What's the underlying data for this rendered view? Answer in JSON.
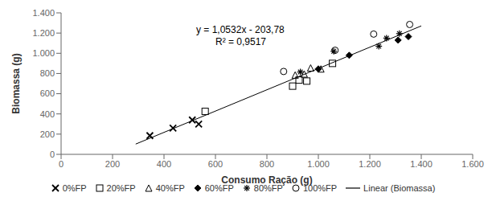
{
  "chart_data": {
    "type": "scatter",
    "x_label": "Consumo Ração (g)",
    "y_label": "Biomassa (g)",
    "annotations": [
      "y = 1,0532x - 203,78",
      "R² = 0,9517"
    ],
    "color": "#000000",
    "grid": false,
    "legend": "bottom",
    "xlim": [
      0,
      1600
    ],
    "ylim": [
      0,
      1400
    ],
    "xticks": [
      0,
      200,
      400,
      600,
      800,
      {
        "value": 1000,
        "label": "1.000"
      },
      {
        "value": 1200,
        "label": "1.200"
      },
      {
        "value": 1400,
        "label": "1.400"
      },
      {
        "value": 1600,
        "label": "1.600"
      }
    ],
    "yticks": [
      0,
      200,
      400,
      600,
      800,
      {
        "value": 1000,
        "label": "1.000"
      },
      {
        "value": 1200,
        "label": "1.200"
      },
      {
        "value": 1400,
        "label": "1.400"
      }
    ],
    "series": [
      {
        "name": "0%FP",
        "type": "scatter",
        "marker": "x",
        "x": [
          345,
          435,
          510,
          535
        ],
        "values": [
          185,
          260,
          340,
          300
        ]
      },
      {
        "name": "20%FP",
        "type": "scatter",
        "marker": "square",
        "x": [
          560,
          900,
          925,
          955,
          1055
        ],
        "values": [
          425,
          675,
          735,
          725,
          900
        ]
      },
      {
        "name": "40%FP",
        "type": "scatter",
        "marker": "triangle",
        "x": [
          910,
          945,
          970,
          1010
        ],
        "values": [
          785,
          795,
          855,
          845
        ]
      },
      {
        "name": "60%FP",
        "type": "scatter",
        "marker": "filled_diamond",
        "x": [
          1000,
          1120,
          1310,
          1350
        ],
        "values": [
          845,
          980,
          1130,
          1165
        ]
      },
      {
        "name": "80%FP",
        "type": "scatter",
        "marker": "asterisk",
        "x": [
          930,
          1060,
          1235,
          1265,
          1315
        ],
        "values": [
          815,
          1020,
          1070,
          1150,
          1195
        ]
      },
      {
        "name": "100%FP",
        "type": "scatter",
        "marker": "circle",
        "x": [
          865,
          1065,
          1215,
          1355
        ],
        "values": [
          820,
          1030,
          1190,
          1285
        ]
      },
      {
        "name": "Linear (Biomassa)",
        "type": "line",
        "line_style": "solid",
        "x": [
          290,
          1400
        ],
        "values": [
          101.648,
          1270.7
        ]
      }
    ]
  }
}
